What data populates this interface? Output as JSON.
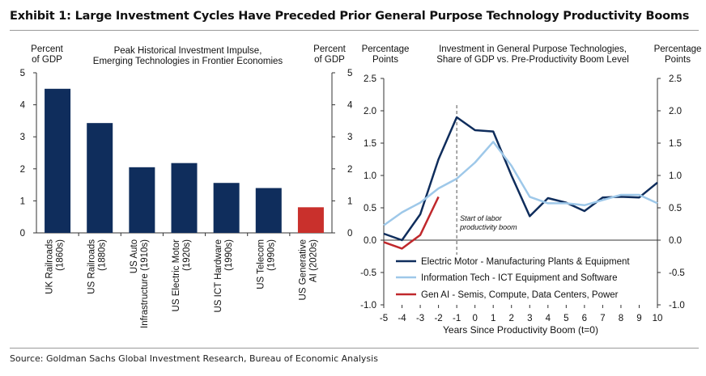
{
  "title": "Exhibit 1: Large Investment Cycles Have Preceded Prior General Purpose Technology Productivity Booms",
  "source": "Source: Goldman Sachs Global Investment Research, Bureau of Economic Analysis",
  "colors": {
    "navy": "#0f2d5c",
    "light_blue": "#9ec8e9",
    "red": "#c9302c",
    "dark_red": "#c0282c"
  },
  "chart_data": [
    {
      "type": "bar",
      "title": [
        "Peak Historical Investment Impulse,",
        "Emerging Technologies in Frontier Economies"
      ],
      "ylabel_left": [
        "Percent",
        "of GDP"
      ],
      "ylabel_right": [
        "Percent",
        "of GDP"
      ],
      "ylim": [
        0,
        5
      ],
      "yticks": [
        0,
        1,
        2,
        3,
        4,
        5
      ],
      "categories": [
        [
          "UK Railroads",
          "(1860s)"
        ],
        [
          "US Railroads",
          "(1880s)"
        ],
        [
          "US Auto",
          "Infrastructure (1910s)"
        ],
        [
          "US Electric Motor",
          "(1920s)"
        ],
        [
          "US ICT Hardware",
          "(1990s)"
        ],
        [
          "US Telecom",
          "(1990s)"
        ],
        [
          "US Generative",
          "AI (2020s)"
        ]
      ],
      "values": [
        4.5,
        3.43,
        2.05,
        2.18,
        1.56,
        1.4,
        0.8
      ],
      "bar_colors": [
        "#0f2d5c",
        "#0f2d5c",
        "#0f2d5c",
        "#0f2d5c",
        "#0f2d5c",
        "#0f2d5c",
        "#c9302c"
      ]
    },
    {
      "type": "line",
      "title": [
        "Investment in General Purpose Technologies,",
        "Share of GDP vs. Pre-Productivity Boom Level"
      ],
      "ylabel_left": [
        "Percentage",
        "Points"
      ],
      "ylabel_right": [
        "Percentage",
        "Points"
      ],
      "xlabel": "Years Since Productivity Boom (t=0)",
      "ylim": [
        -1.0,
        2.5
      ],
      "yticks": [
        "-1.0",
        "-0.5",
        "0.0",
        "0.5",
        "1.0",
        "1.5",
        "2.0",
        "2.5"
      ],
      "ytick_values": [
        -1.0,
        -0.5,
        0.0,
        0.5,
        1.0,
        1.5,
        2.0,
        2.5
      ],
      "xlim": [
        -5,
        10
      ],
      "xticks": [
        "-5",
        "-4",
        "-3",
        "-2",
        "-1",
        "0",
        "1",
        "2",
        "3",
        "4",
        "5",
        "6",
        "7",
        "8",
        "9",
        "10"
      ],
      "xtick_values": [
        -5,
        -4,
        -3,
        -2,
        -1,
        0,
        1,
        2,
        3,
        4,
        5,
        6,
        7,
        8,
        9,
        10
      ],
      "annotation": {
        "x": -1,
        "lines": [
          "Start of labor",
          "productivity boom"
        ]
      },
      "series": [
        {
          "name": "Electric Motor -  Manufacturing Plants & Equipment",
          "color": "#0f2d5c",
          "x": [
            -5,
            -4,
            -3,
            -2,
            -1,
            0,
            1,
            2,
            3,
            4,
            5,
            6,
            7,
            8,
            9,
            10
          ],
          "y": [
            0.1,
            0.0,
            0.4,
            1.25,
            1.9,
            1.7,
            1.68,
            1.0,
            0.37,
            0.65,
            0.58,
            0.45,
            0.66,
            0.67,
            0.66,
            0.89
          ]
        },
        {
          "name": "Information Tech - ICT Equipment and Software",
          "color": "#9ec8e9",
          "x": [
            -5,
            -4,
            -3,
            -2,
            -1,
            0,
            1,
            2,
            3,
            4,
            5,
            6,
            7,
            8,
            9,
            10
          ],
          "y": [
            0.23,
            0.43,
            0.58,
            0.8,
            0.95,
            1.2,
            1.52,
            1.15,
            0.67,
            0.57,
            0.57,
            0.54,
            0.62,
            0.7,
            0.7,
            0.57
          ]
        },
        {
          "name": "Gen AI - Semis, Compute, Data Centers, Power",
          "color": "#c0282c",
          "x": [
            -5,
            -4,
            -3,
            -2
          ],
          "y": [
            -0.03,
            -0.13,
            0.08,
            0.67
          ]
        }
      ]
    }
  ]
}
